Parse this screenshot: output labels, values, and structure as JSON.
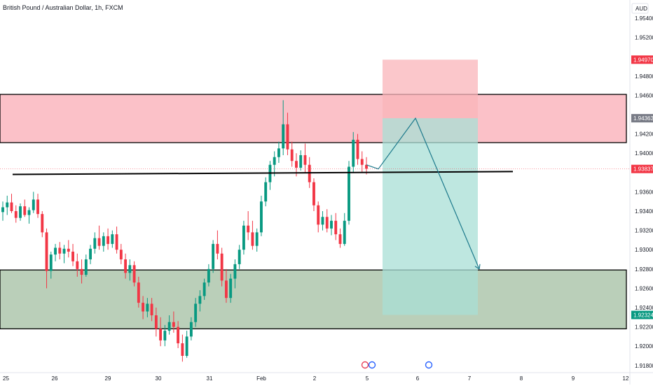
{
  "chart_data": {
    "type": "candlestick",
    "title": "British Pound / Australian Dollar, 1h, FXCM",
    "currency": "AUD",
    "ylim": [
      1.9175,
      1.9555
    ],
    "y_ticks": [
      "1.95400",
      "1.95200",
      "1.94970",
      "1.94800",
      "1.94600",
      "1.94363",
      "1.94200",
      "1.94000",
      "1.93837",
      "1.93600",
      "1.93400",
      "1.93200",
      "1.93000",
      "1.92800",
      "1.92600",
      "1.92400",
      "1.92324",
      "1.92200",
      "1.92000",
      "1.91800"
    ],
    "x_ticks": [
      "25",
      "26",
      "29",
      "30",
      "31",
      "Feb",
      "2",
      "5",
      "6",
      "7",
      "8",
      "9",
      "12"
    ],
    "price_labels": [
      {
        "value": 1.9497,
        "text": "1.94970",
        "color": "#f23645"
      },
      {
        "value": 1.94363,
        "text": "1.94363",
        "color": "#787b86"
      },
      {
        "value": 1.93837,
        "text": "1.93837",
        "color": "#f23645"
      },
      {
        "value": 1.92324,
        "text": "1.92324",
        "color": "#089981"
      }
    ],
    "zones": [
      {
        "name": "resistance",
        "y_top": 1.9461,
        "y_bottom": 1.9411,
        "color": "#f9a7b0"
      },
      {
        "name": "support",
        "y_top": 1.9279,
        "y_bottom": 1.9218,
        "color": "#b6ccb5"
      }
    ],
    "position": {
      "direction": "short",
      "stop": 1.9497,
      "entry": 1.94363,
      "target": 1.92324,
      "stop_color": "#f9b4b9",
      "target_color": "#a8dfd5"
    },
    "trend_line": {
      "y_start": 1.9378,
      "y_end": 1.9381
    },
    "last_price": 1.93837,
    "candles": [
      [
        1.9339,
        1.935,
        1.933,
        1.9344
      ],
      [
        1.9344,
        1.9356,
        1.9336,
        1.9349
      ],
      [
        1.9349,
        1.9358,
        1.9338,
        1.934
      ],
      [
        1.934,
        1.9346,
        1.9328,
        1.9333
      ],
      [
        1.9333,
        1.9348,
        1.933,
        1.9345
      ],
      [
        1.9345,
        1.9352,
        1.9334,
        1.9336
      ],
      [
        1.9336,
        1.9344,
        1.9327,
        1.9341
      ],
      [
        1.9341,
        1.936,
        1.9338,
        1.9352
      ],
      [
        1.9352,
        1.9358,
        1.9333,
        1.9337
      ],
      [
        1.9337,
        1.934,
        1.9313,
        1.9318
      ],
      [
        1.9318,
        1.9322,
        1.926,
        1.9278
      ],
      [
        1.9278,
        1.9298,
        1.927,
        1.9295
      ],
      [
        1.9295,
        1.9306,
        1.9288,
        1.9302
      ],
      [
        1.9302,
        1.9308,
        1.929,
        1.9296
      ],
      [
        1.9296,
        1.9305,
        1.9286,
        1.9301
      ],
      [
        1.9301,
        1.931,
        1.9292,
        1.9298
      ],
      [
        1.9298,
        1.9306,
        1.9283,
        1.9288
      ],
      [
        1.9288,
        1.9296,
        1.9272,
        1.928
      ],
      [
        1.928,
        1.929,
        1.9265,
        1.9274
      ],
      [
        1.9274,
        1.9295,
        1.9272,
        1.929
      ],
      [
        1.929,
        1.9305,
        1.9285,
        1.9301
      ],
      [
        1.9301,
        1.9318,
        1.9296,
        1.9312
      ],
      [
        1.9312,
        1.9325,
        1.93,
        1.9304
      ],
      [
        1.9304,
        1.9318,
        1.9298,
        1.9314
      ],
      [
        1.9314,
        1.9322,
        1.93,
        1.9306
      ],
      [
        1.9306,
        1.932,
        1.9302,
        1.9316
      ],
      [
        1.9316,
        1.9324,
        1.9296,
        1.93
      ],
      [
        1.93,
        1.9306,
        1.9285,
        1.929
      ],
      [
        1.929,
        1.9296,
        1.927,
        1.9276
      ],
      [
        1.9276,
        1.929,
        1.9268,
        1.9284
      ],
      [
        1.9284,
        1.9288,
        1.9262,
        1.9266
      ],
      [
        1.9266,
        1.9272,
        1.924,
        1.9245
      ],
      [
        1.9245,
        1.9252,
        1.9228,
        1.9236
      ],
      [
        1.9236,
        1.925,
        1.923,
        1.9244
      ],
      [
        1.9244,
        1.925,
        1.9226,
        1.9232
      ],
      [
        1.9232,
        1.924,
        1.921,
        1.9218
      ],
      [
        1.9218,
        1.923,
        1.92,
        1.9206
      ],
      [
        1.9206,
        1.9222,
        1.92,
        1.9216
      ],
      [
        1.9216,
        1.9232,
        1.9212,
        1.9225
      ],
      [
        1.9225,
        1.9236,
        1.9214,
        1.922
      ],
      [
        1.922,
        1.9226,
        1.9198,
        1.9203
      ],
      [
        1.9203,
        1.9212,
        1.9184,
        1.919
      ],
      [
        1.919,
        1.9216,
        1.9188,
        1.921
      ],
      [
        1.921,
        1.923,
        1.9206,
        1.9225
      ],
      [
        1.9225,
        1.925,
        1.922,
        1.9244
      ],
      [
        1.9244,
        1.9258,
        1.9236,
        1.9252
      ],
      [
        1.9252,
        1.927,
        1.9248,
        1.9266
      ],
      [
        1.9266,
        1.9285,
        1.9262,
        1.928
      ],
      [
        1.928,
        1.931,
        1.9276,
        1.9306
      ],
      [
        1.9306,
        1.932,
        1.929,
        1.9296
      ],
      [
        1.9296,
        1.9302,
        1.9262,
        1.9268
      ],
      [
        1.9268,
        1.928,
        1.9245,
        1.925
      ],
      [
        1.925,
        1.9275,
        1.9245,
        1.927
      ],
      [
        1.927,
        1.929,
        1.926,
        1.9285
      ],
      [
        1.9285,
        1.9305,
        1.928,
        1.93
      ],
      [
        1.93,
        1.933,
        1.9295,
        1.9325
      ],
      [
        1.9325,
        1.934,
        1.931,
        1.9318
      ],
      [
        1.9318,
        1.933,
        1.93,
        1.9304
      ],
      [
        1.9304,
        1.9322,
        1.9298,
        1.9318
      ],
      [
        1.9318,
        1.9356,
        1.9314,
        1.935
      ],
      [
        1.935,
        1.9375,
        1.9345,
        1.937
      ],
      [
        1.937,
        1.9392,
        1.9362,
        1.9388
      ],
      [
        1.9388,
        1.9402,
        1.9376,
        1.9396
      ],
      [
        1.9396,
        1.9412,
        1.939,
        1.9405
      ],
      [
        1.9405,
        1.9455,
        1.9398,
        1.943
      ],
      [
        1.943,
        1.9442,
        1.9398,
        1.9404
      ],
      [
        1.9404,
        1.9412,
        1.9386,
        1.9392
      ],
      [
        1.9392,
        1.94,
        1.9376,
        1.9385
      ],
      [
        1.9385,
        1.9403,
        1.9382,
        1.9398
      ],
      [
        1.9398,
        1.941,
        1.938,
        1.9388
      ],
      [
        1.9388,
        1.9396,
        1.9364,
        1.937
      ],
      [
        1.937,
        1.9374,
        1.934,
        1.9346
      ],
      [
        1.9346,
        1.935,
        1.9318,
        1.9326
      ],
      [
        1.9326,
        1.934,
        1.932,
        1.9334
      ],
      [
        1.9334,
        1.9342,
        1.9318,
        1.9322
      ],
      [
        1.9322,
        1.9336,
        1.9315,
        1.933
      ],
      [
        1.933,
        1.9338,
        1.931,
        1.9316
      ],
      [
        1.9316,
        1.9322,
        1.9302,
        1.9306
      ],
      [
        1.9306,
        1.9338,
        1.9304,
        1.933
      ],
      [
        1.933,
        1.9392,
        1.9326,
        1.9386
      ],
      [
        1.9386,
        1.9422,
        1.938,
        1.9414
      ],
      [
        1.9414,
        1.942,
        1.9388,
        1.9394
      ],
      [
        1.9394,
        1.9402,
        1.938,
        1.9388
      ],
      [
        1.9388,
        1.9396,
        1.9378,
        1.9384
      ]
    ],
    "projection": [
      [
        1.9388,
        1.9417
      ],
      [
        1.93837,
        1.9378
      ],
      [
        1.94363,
        1.9447
      ],
      [
        1.928,
        1.928
      ]
    ],
    "bullish_color": "#089981",
    "bearish_color": "#f23645"
  }
}
